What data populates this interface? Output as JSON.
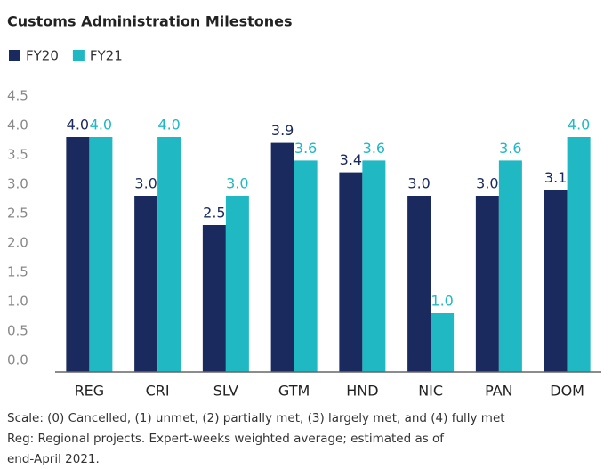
{
  "chart_data": {
    "type": "bar",
    "title": "Customs Administration Milestones",
    "categories": [
      "REG",
      "CRI",
      "SLV",
      "GTM",
      "HND",
      "NIC",
      "PAN",
      "DOM"
    ],
    "series": [
      {
        "name": "FY20",
        "color": "#1b2a5e",
        "values": [
          4.0,
          3.0,
          2.5,
          3.9,
          3.4,
          3.0,
          3.0,
          3.1
        ],
        "value_labels": [
          "4.0",
          "3.0",
          "2.5",
          "3.9",
          "3.4",
          "3.0",
          "3.0",
          "3.1"
        ]
      },
      {
        "name": "FY21",
        "color": "#1fb8c3",
        "values": [
          4.0,
          4.0,
          3.0,
          3.6,
          3.6,
          1.0,
          3.6,
          4.0
        ],
        "value_labels": [
          "4.0",
          "4.0",
          "3.0",
          "3.6",
          "3.6",
          "1.0",
          "3.6",
          "4.0"
        ]
      }
    ],
    "ylim": [
      0,
      4.5
    ],
    "yticks": [
      {
        "value": 0,
        "label": "0.0"
      },
      0.5,
      {
        "value": 1,
        "label": "1.0"
      },
      1.5,
      {
        "value": 2,
        "label": "2.0"
      },
      2.5,
      {
        "value": 3,
        "label": "3.0"
      },
      3.5,
      {
        "value": 4,
        "label": "4.0"
      },
      4.5
    ],
    "grid": false,
    "legend": "top-left",
    "notes": [
      "Scale: (0) Cancelled, (1) unmet, (2) partially met, (3) largely met, and (4) fully met",
      "Reg: Regional projects. Expert-weeks weighted average; estimated as of",
      "end-April 2021."
    ]
  }
}
